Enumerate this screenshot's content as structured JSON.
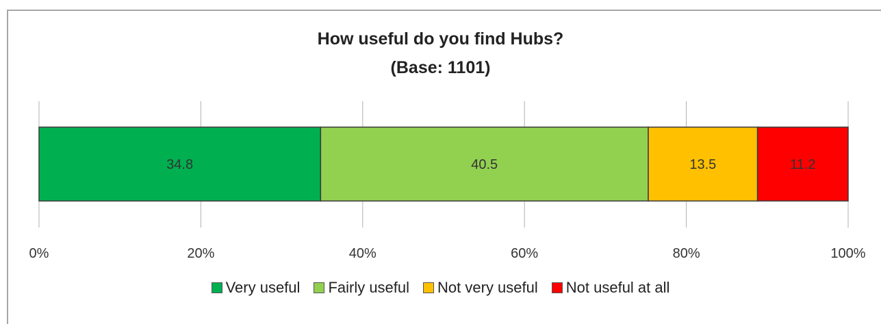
{
  "chart_data": {
    "type": "bar",
    "orientation": "horizontal-stacked-100",
    "title": "How useful do you find Hubs?",
    "subtitle": "(Base: 1101)",
    "categories": [
      ""
    ],
    "series": [
      {
        "name": "Very useful",
        "values": [
          34.8
        ],
        "label": "34.8",
        "color": "#00b050"
      },
      {
        "name": "Fairly useful",
        "values": [
          40.5
        ],
        "label": "40.5",
        "color": "#92d050"
      },
      {
        "name": "Not very useful",
        "values": [
          13.5
        ],
        "label": "13.5",
        "color": "#ffc000"
      },
      {
        "name": "Not useful at all",
        "values": [
          11.2
        ],
        "label": "11.2",
        "color": "#ff0000"
      }
    ],
    "xlim": [
      0,
      100
    ],
    "x_ticks": [
      "0%",
      "20%",
      "40%",
      "60%",
      "80%",
      "100%"
    ],
    "grid": true,
    "legend_position": "bottom"
  }
}
